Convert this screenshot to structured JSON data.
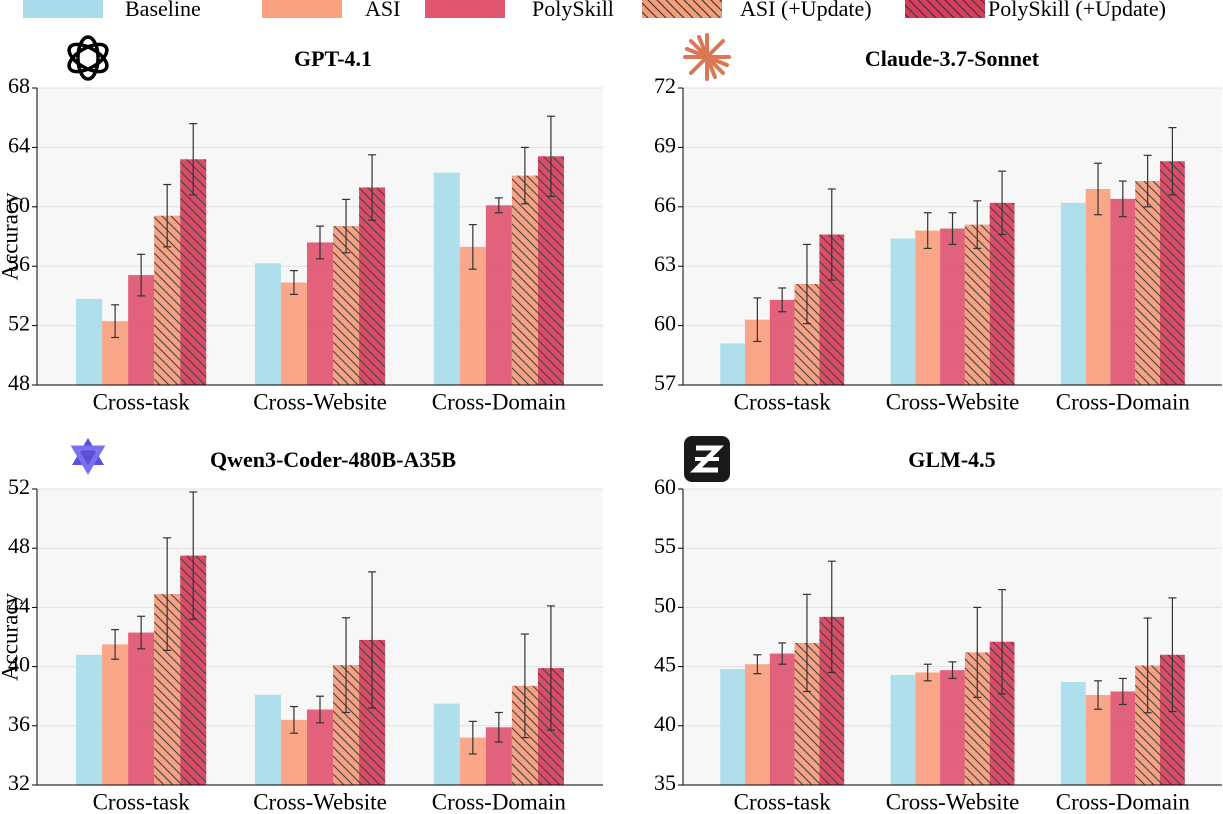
{
  "chart_data": [
    {
      "type": "bar",
      "title": "GPT-4.1",
      "ylabel": "Accuracy",
      "categories": [
        "Cross-task",
        "Cross-Website",
        "Cross-Domain"
      ],
      "ylim": [
        48,
        68
      ],
      "yticks": [
        48,
        52,
        56,
        60,
        64,
        68
      ],
      "grid": true,
      "series": [
        {
          "name": "Baseline",
          "color": "#a8dcea",
          "values": [
            53.8,
            56.2,
            62.3
          ]
        },
        {
          "name": "ASI",
          "color": "#f9a07e",
          "values": [
            52.3,
            54.9,
            57.3
          ],
          "errors": [
            1.1,
            0.8,
            1.5
          ]
        },
        {
          "name": "PolySkill",
          "color": "#e05570",
          "values": [
            55.4,
            57.6,
            60.1
          ],
          "errors": [
            1.4,
            1.1,
            0.5
          ]
        },
        {
          "name": "ASI (+Update)",
          "color": "#f59c7a",
          "hatch": true,
          "values": [
            59.4,
            58.7,
            62.1
          ],
          "errors": [
            2.1,
            1.8,
            1.9
          ]
        },
        {
          "name": "PolySkill (+Update)",
          "color": "#d93d5c",
          "hatch": true,
          "values": [
            63.2,
            61.3,
            63.4
          ],
          "errors": [
            2.4,
            2.2,
            2.7
          ]
        }
      ]
    },
    {
      "type": "bar",
      "title": "Claude-3.7-Sonnet",
      "categories": [
        "Cross-task",
        "Cross-Website",
        "Cross-Domain"
      ],
      "ylim": [
        57,
        72
      ],
      "yticks": [
        57,
        60,
        63,
        66,
        69,
        72
      ],
      "grid": true,
      "series": [
        {
          "name": "Baseline",
          "color": "#a8dcea",
          "values": [
            59.1,
            64.4,
            66.2
          ]
        },
        {
          "name": "ASI",
          "color": "#f9a07e",
          "values": [
            60.3,
            64.8,
            66.9
          ],
          "errors": [
            1.1,
            0.9,
            1.3
          ]
        },
        {
          "name": "PolySkill",
          "color": "#e05570",
          "values": [
            61.3,
            64.9,
            66.4
          ],
          "errors": [
            0.6,
            0.8,
            0.9
          ]
        },
        {
          "name": "ASI (+Update)",
          "color": "#f59c7a",
          "hatch": true,
          "values": [
            62.1,
            65.1,
            67.3
          ],
          "errors": [
            2.0,
            1.2,
            1.3
          ]
        },
        {
          "name": "PolySkill (+Update)",
          "color": "#d93d5c",
          "hatch": true,
          "values": [
            64.6,
            66.2,
            68.3
          ],
          "errors": [
            2.3,
            1.6,
            1.7
          ]
        }
      ]
    },
    {
      "type": "bar",
      "title": "Qwen3-Coder-480B-A35B",
      "ylabel": "Accuracy",
      "categories": [
        "Cross-task",
        "Cross-Website",
        "Cross-Domain"
      ],
      "ylim": [
        32,
        52
      ],
      "yticks": [
        32,
        36,
        40,
        44,
        48,
        52
      ],
      "grid": true,
      "series": [
        {
          "name": "Baseline",
          "color": "#a8dcea",
          "values": [
            40.8,
            38.1,
            37.5
          ]
        },
        {
          "name": "ASI",
          "color": "#f9a07e",
          "values": [
            41.5,
            36.4,
            35.2
          ],
          "errors": [
            1.0,
            0.9,
            1.1
          ]
        },
        {
          "name": "PolySkill",
          "color": "#e05570",
          "values": [
            42.3,
            37.1,
            35.9
          ],
          "errors": [
            1.1,
            0.9,
            1.0
          ]
        },
        {
          "name": "ASI (+Update)",
          "color": "#f59c7a",
          "hatch": true,
          "values": [
            44.9,
            40.1,
            38.7
          ],
          "errors": [
            3.8,
            3.2,
            3.5
          ]
        },
        {
          "name": "PolySkill (+Update)",
          "color": "#d93d5c",
          "hatch": true,
          "values": [
            47.5,
            41.8,
            39.9
          ],
          "errors": [
            4.3,
            4.6,
            4.2
          ]
        }
      ]
    },
    {
      "type": "bar",
      "title": "GLM-4.5",
      "categories": [
        "Cross-task",
        "Cross-Website",
        "Cross-Domain"
      ],
      "ylim": [
        35,
        60
      ],
      "yticks": [
        35,
        40,
        45,
        50,
        55,
        60
      ],
      "grid": true,
      "series": [
        {
          "name": "Baseline",
          "color": "#a8dcea",
          "values": [
            44.8,
            44.3,
            43.7
          ]
        },
        {
          "name": "ASI",
          "color": "#f9a07e",
          "values": [
            45.2,
            44.5,
            42.6
          ],
          "errors": [
            0.8,
            0.7,
            1.2
          ]
        },
        {
          "name": "PolySkill",
          "color": "#e05570",
          "values": [
            46.1,
            44.7,
            42.9
          ],
          "errors": [
            0.9,
            0.7,
            1.1
          ]
        },
        {
          "name": "ASI (+Update)",
          "color": "#f59c7a",
          "hatch": true,
          "values": [
            47.0,
            46.2,
            45.1
          ],
          "errors": [
            4.1,
            3.8,
            4.0
          ]
        },
        {
          "name": "PolySkill (+Update)",
          "color": "#d93d5c",
          "hatch": true,
          "values": [
            49.2,
            47.1,
            46.0
          ],
          "errors": [
            4.7,
            4.4,
            4.8
          ]
        }
      ]
    }
  ]
}
